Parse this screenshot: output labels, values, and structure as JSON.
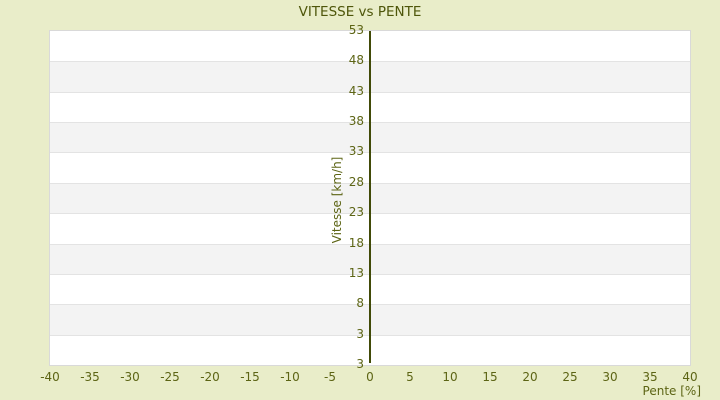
{
  "chart": {
    "title": "VITESSE vs PENTE",
    "y_axis": {
      "label": "Vitesse [km/h]",
      "tick_labels": [
        "53",
        "48",
        "43",
        "38",
        "33",
        "28",
        "23",
        "18",
        "13",
        "8",
        "3"
      ],
      "extra_bottom_label": "3"
    },
    "x_axis": {
      "label": "Pente [%]",
      "tick_labels": [
        "-40",
        "-35",
        "-30",
        "-25",
        "-20",
        "-15",
        "-10",
        "-5",
        "0",
        "5",
        "10",
        "15",
        "20",
        "25",
        "30",
        "35",
        "40"
      ]
    },
    "colors": {
      "page_background": "#e9edc9",
      "plot_background": "#ffffff",
      "band_alternate": "#f3f3f3",
      "gridline": "#e3e3e3",
      "plot_border": "#d9d9d9",
      "text_olive": "#5c6414",
      "title_olive": "#4e560a",
      "axis_line": "#414a08"
    }
  },
  "chart_data": {
    "type": "line",
    "title": "VITESSE vs PENTE",
    "xlabel": "Pente [%]",
    "ylabel": "Vitesse [km/h]",
    "xlim": [
      -40,
      40
    ],
    "ylim": [
      -2,
      53
    ],
    "xticks": [
      -40,
      -35,
      -30,
      -25,
      -20,
      -15,
      -10,
      -5,
      0,
      5,
      10,
      15,
      20,
      25,
      30,
      35,
      40
    ],
    "yticks": [
      3,
      8,
      13,
      18,
      23,
      28,
      33,
      38,
      43,
      48,
      53
    ],
    "series": [],
    "grid": "horizontal-bands-alternating",
    "zero_axis_line": "vertical-at-x-0",
    "legend": "none"
  }
}
